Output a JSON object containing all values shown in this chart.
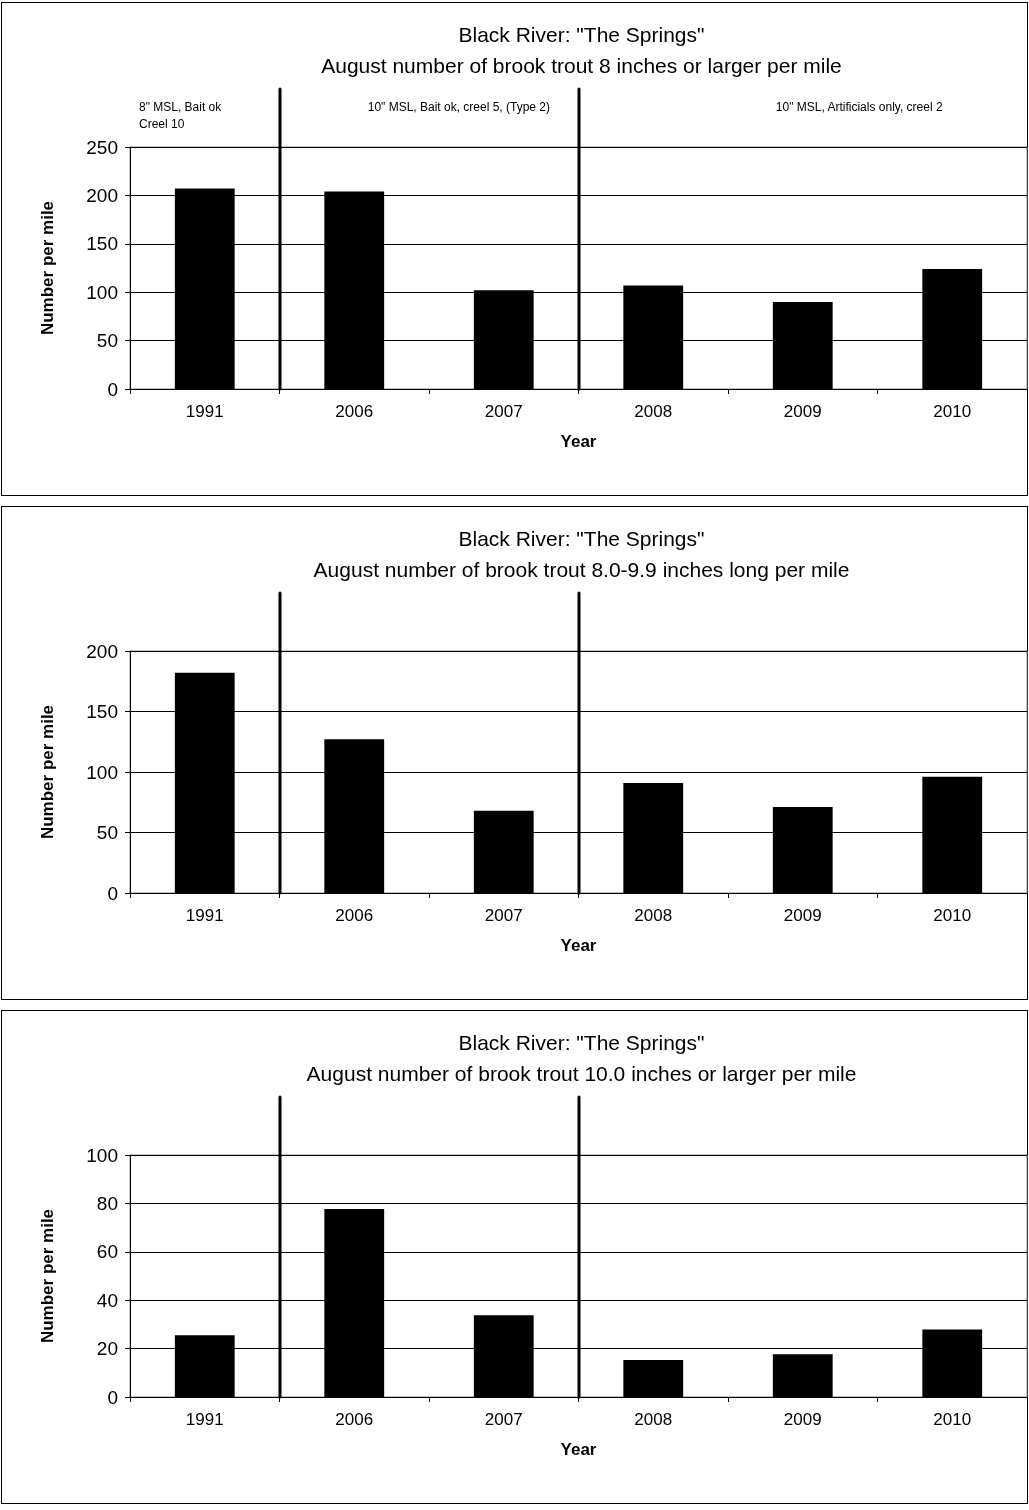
{
  "chart_data": [
    {
      "type": "bar",
      "title": "Black River: \"The Springs\"",
      "subtitle": "August number of brook trout 8 inches or larger per mile",
      "xlabel": "Year",
      "ylabel": "Number per mile",
      "categories": [
        "1991",
        "2006",
        "2007",
        "2008",
        "2009",
        "2010"
      ],
      "values": [
        207,
        204,
        102,
        107,
        90,
        124
      ],
      "color": "#000000",
      "ylim": [
        0,
        250
      ],
      "yticks": [
        0,
        50,
        100,
        150,
        200,
        250
      ],
      "grid": "y",
      "annotations": [
        "8\" MSL, Bait ok\nCreel 10",
        "10\" MSL, Bait ok, creel 5, (Type 2)",
        "10\" MSL, Artificials only, creel 2"
      ]
    },
    {
      "type": "bar",
      "title": "Black River: \"The Springs\"",
      "subtitle": "August number of brook trout 8.0-9.9 inches long per mile",
      "xlabel": "Year",
      "ylabel": "Number per mile",
      "categories": [
        "1991",
        "2006",
        "2007",
        "2008",
        "2009",
        "2010"
      ],
      "values": [
        182,
        127,
        68,
        91,
        71,
        96
      ],
      "color": "#000000",
      "ylim": [
        0,
        200
      ],
      "yticks": [
        0,
        50,
        100,
        150,
        200
      ],
      "grid": "y"
    },
    {
      "type": "bar",
      "title": "Black River: \"The Springs\"",
      "subtitle": "August number of brook trout 10.0 inches or larger per mile",
      "xlabel": "Year",
      "ylabel": "Number per mile",
      "categories": [
        "1991",
        "2006",
        "2007",
        "2008",
        "2009",
        "2010"
      ],
      "values": [
        25.5,
        77.7,
        33.8,
        15.3,
        17.7,
        27.9
      ],
      "color": "#000000",
      "ylim": [
        0,
        100
      ],
      "yticks": [
        0,
        20,
        40,
        60,
        80,
        100
      ],
      "grid": "y"
    }
  ]
}
